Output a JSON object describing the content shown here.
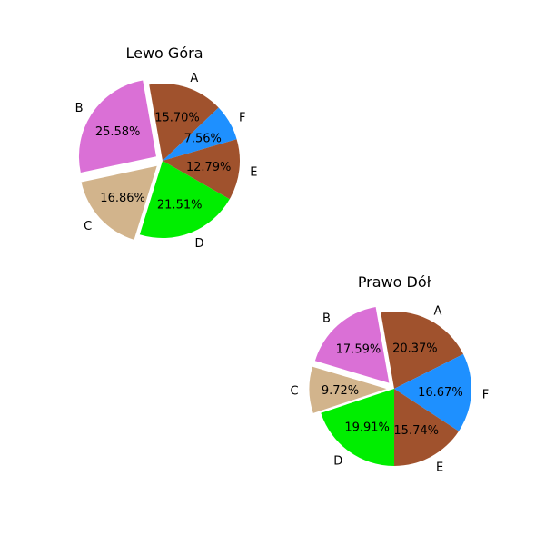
{
  "chart_data": [
    {
      "type": "pie",
      "title": "Lewo Góra",
      "categories": [
        "A",
        "F",
        "E",
        "D",
        "C",
        "B"
      ],
      "values": [
        15.7,
        7.56,
        12.79,
        21.51,
        16.86,
        25.58
      ],
      "labels": [
        "15.70%",
        "7.56%",
        "12.79%",
        "21.51%",
        "16.86%",
        "25.58%"
      ],
      "colors": [
        "#A0522D",
        "#1E90FF",
        "#A0522D",
        "#00EE00",
        "#D2B48C",
        "#DA70D6"
      ],
      "explode": [
        0,
        0,
        0,
        0,
        0.1,
        0.1
      ],
      "start_angle_deg": 100,
      "direction": "clockwise"
    },
    {
      "type": "pie",
      "title": "Prawo Dół",
      "categories": [
        "A",
        "F",
        "E",
        "D",
        "C",
        "B"
      ],
      "values": [
        20.37,
        16.67,
        15.74,
        19.91,
        9.72,
        17.59
      ],
      "labels": [
        "20.37%",
        "16.67%",
        "15.74%",
        "19.91%",
        "9.72%",
        "17.59%"
      ],
      "colors": [
        "#A0522D",
        "#1E90FF",
        "#A0522D",
        "#00EE00",
        "#D2B48C",
        "#DA70D6"
      ],
      "explode": [
        0,
        0,
        0,
        0,
        0.1,
        0.1
      ],
      "start_angle_deg": 100,
      "direction": "clockwise"
    }
  ]
}
